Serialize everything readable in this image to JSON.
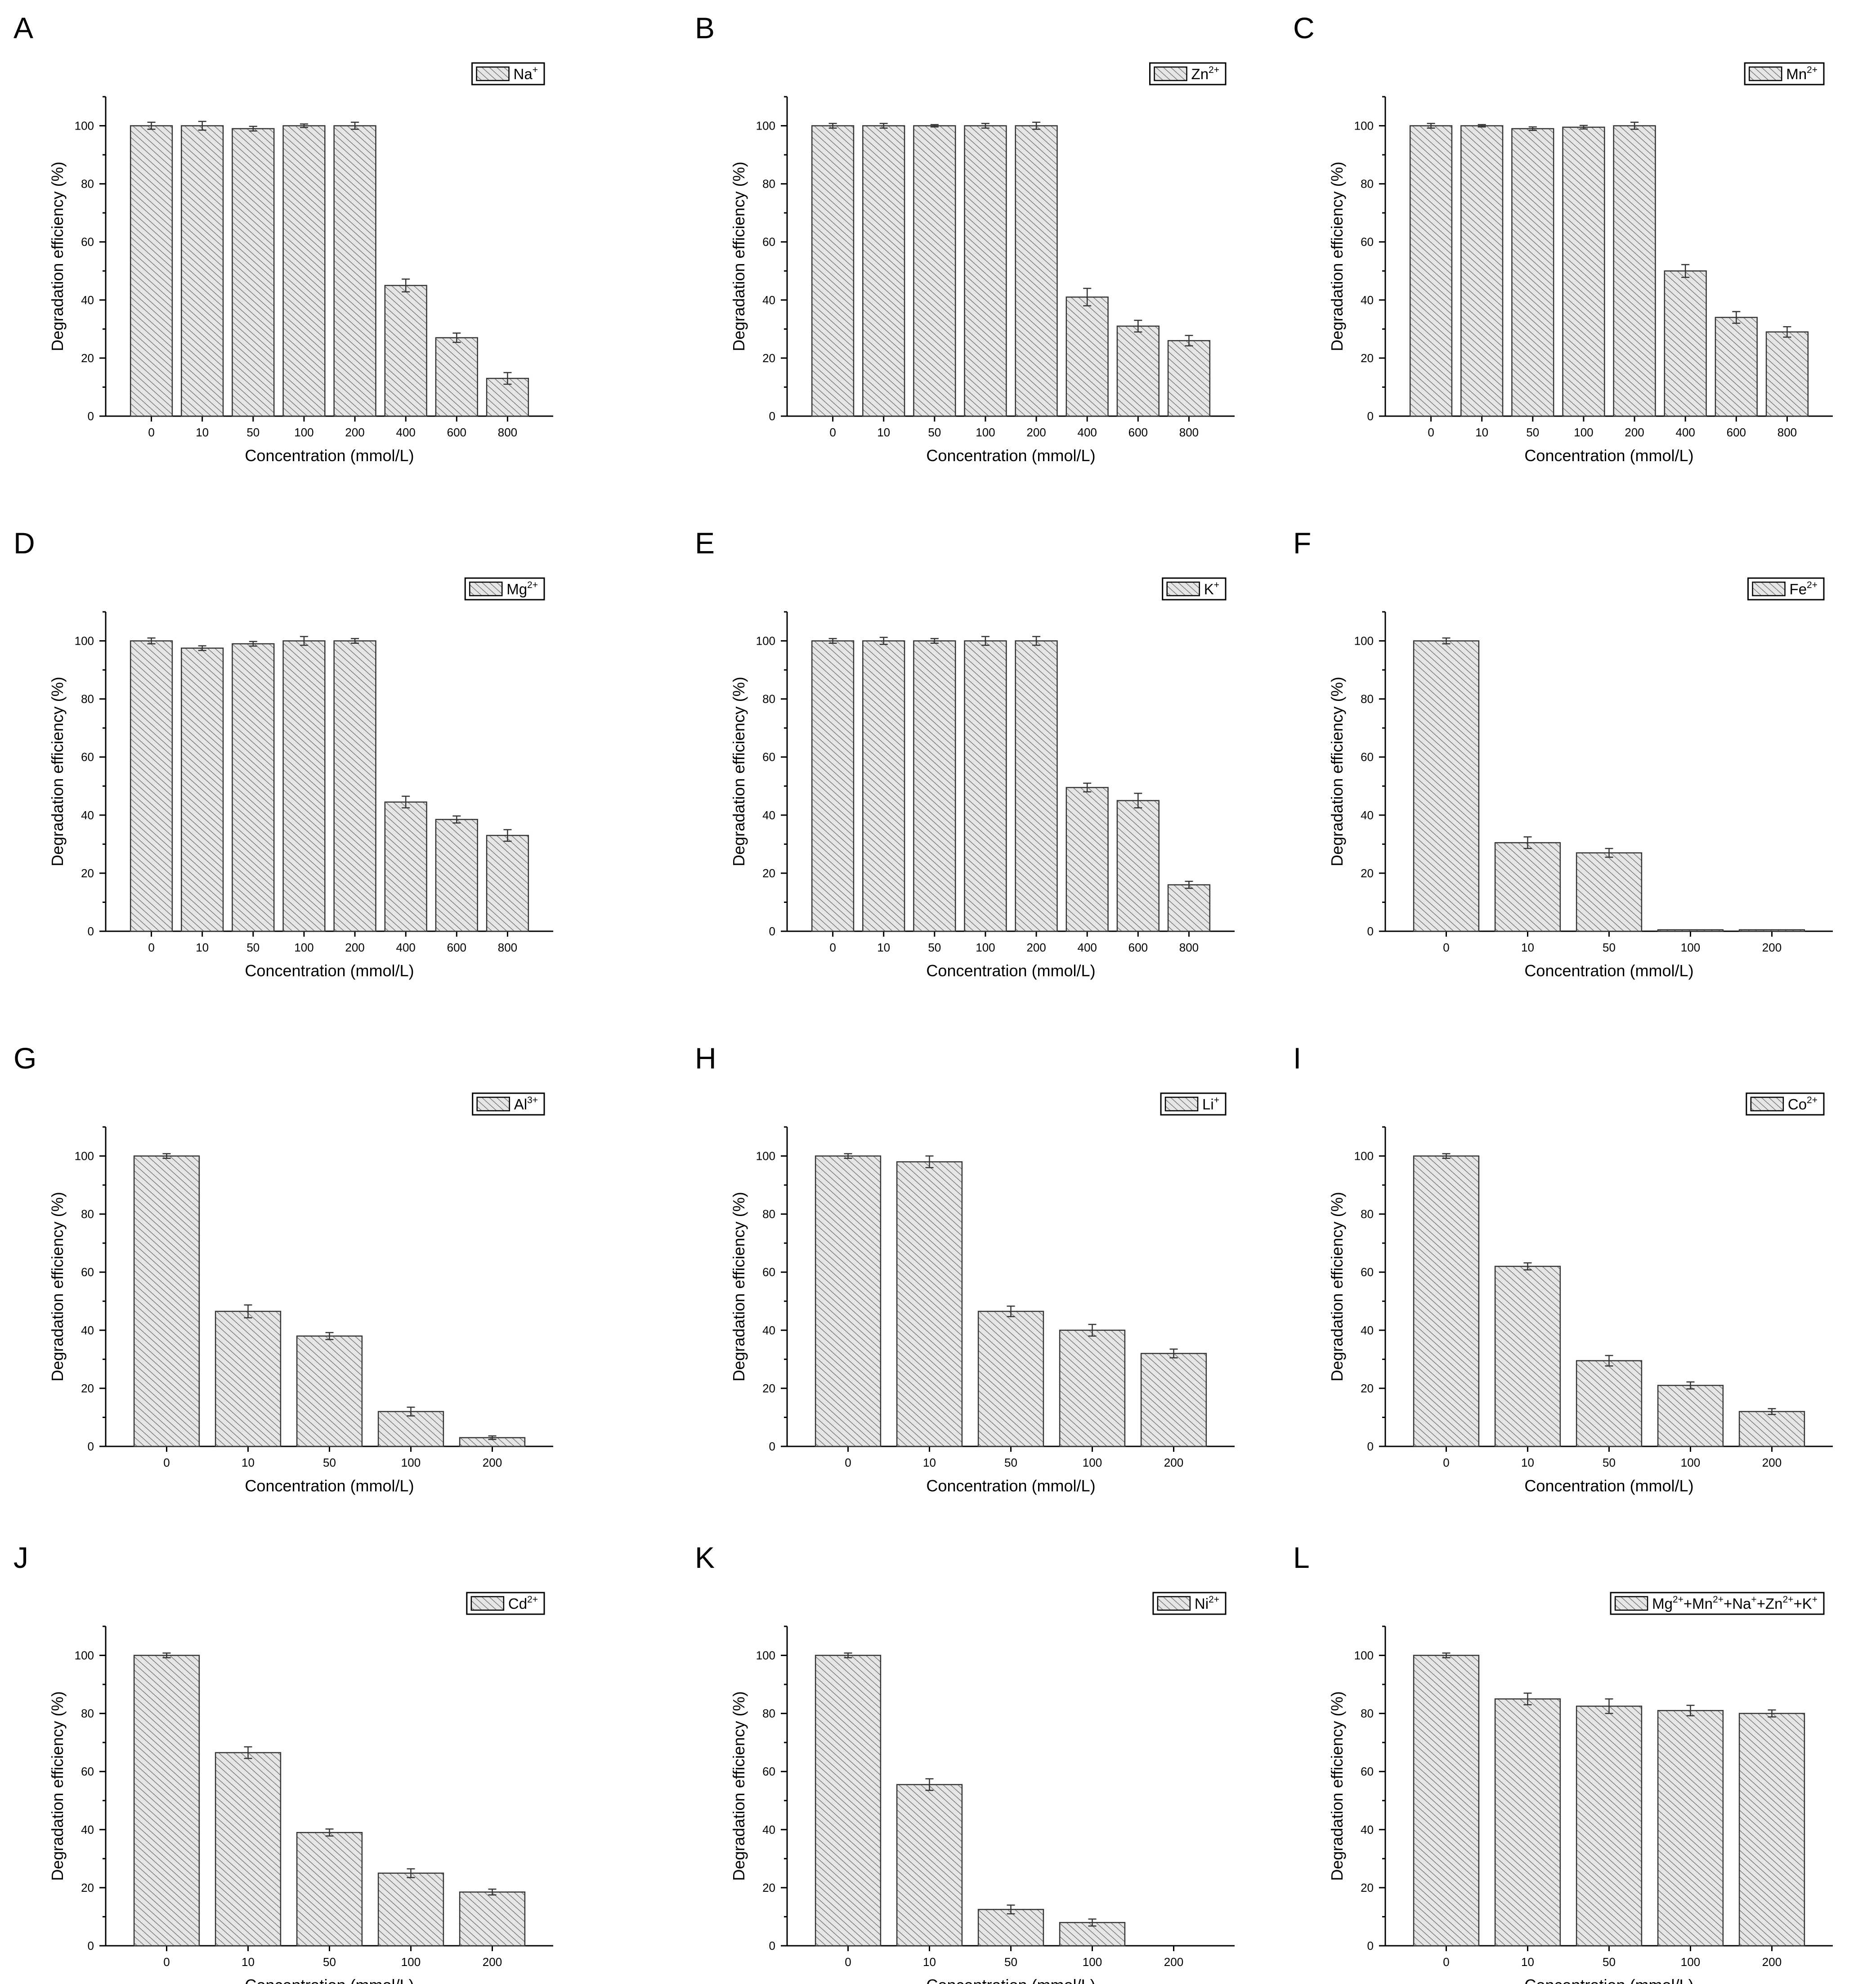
{
  "figure": {
    "colors": {
      "bar_fill": "#e6e6e6",
      "hatch": "#7a7a7a",
      "axis": "#000000",
      "background": "#ffffff"
    }
  },
  "chart_data": [
    {
      "panel": "A",
      "type": "bar",
      "legend": [
        {
          "base": "Na",
          "sup": "+"
        }
      ],
      "categories": [
        "0",
        "10",
        "50",
        "100",
        "200",
        "400",
        "600",
        "800"
      ],
      "values": [
        100,
        100,
        99,
        100,
        100,
        45,
        27,
        13
      ],
      "errors": [
        1.2,
        1.5,
        0.8,
        0.6,
        1.2,
        2.2,
        1.6,
        2.0
      ],
      "xlabel": "Concentration (mmol/L)",
      "ylabel": "Degradation efficiency (%)",
      "ylim": [
        0,
        110
      ],
      "yticks": [
        "0",
        "20",
        "40",
        "60",
        "80",
        "100"
      ]
    },
    {
      "panel": "B",
      "type": "bar",
      "legend": [
        {
          "base": "Zn",
          "sup": "2+"
        }
      ],
      "categories": [
        "0",
        "10",
        "50",
        "100",
        "200",
        "400",
        "600",
        "800"
      ],
      "values": [
        100,
        100,
        100,
        100,
        100,
        41,
        31,
        26
      ],
      "errors": [
        0.8,
        0.8,
        0.4,
        0.8,
        1.2,
        3.0,
        2.0,
        1.8
      ],
      "xlabel": "Concentration (mmol/L)",
      "ylabel": "Degradation efficiency (%)",
      "ylim": [
        0,
        110
      ],
      "yticks": [
        "0",
        "20",
        "40",
        "60",
        "80",
        "100"
      ]
    },
    {
      "panel": "C",
      "type": "bar",
      "legend": [
        {
          "base": "Mn",
          "sup": "2+"
        }
      ],
      "categories": [
        "0",
        "10",
        "50",
        "100",
        "200",
        "400",
        "600",
        "800"
      ],
      "values": [
        100,
        100,
        99,
        99.5,
        100,
        50,
        34,
        29
      ],
      "errors": [
        0.8,
        0.4,
        0.6,
        0.6,
        1.2,
        2.2,
        2.0,
        1.8
      ],
      "xlabel": "Concentration (mmol/L)",
      "ylabel": "Degradation efficiency (%)",
      "ylim": [
        0,
        110
      ],
      "yticks": [
        "0",
        "20",
        "40",
        "60",
        "80",
        "100"
      ]
    },
    {
      "panel": "D",
      "type": "bar",
      "legend": [
        {
          "base": "Mg",
          "sup": "2+"
        }
      ],
      "categories": [
        "0",
        "10",
        "50",
        "100",
        "200",
        "400",
        "600",
        "800"
      ],
      "values": [
        100,
        97.5,
        99,
        100,
        100,
        44.5,
        38.5,
        33
      ],
      "errors": [
        1.0,
        0.8,
        0.8,
        1.5,
        0.8,
        2.0,
        1.2,
        2.0
      ],
      "xlabel": "Concentration (mmol/L)",
      "ylabel": "Degradation efficiency (%)",
      "ylim": [
        0,
        110
      ],
      "yticks": [
        "0",
        "20",
        "40",
        "60",
        "80",
        "100"
      ]
    },
    {
      "panel": "E",
      "type": "bar",
      "legend": [
        {
          "base": "K",
          "sup": "+"
        }
      ],
      "categories": [
        "0",
        "10",
        "50",
        "100",
        "200",
        "400",
        "600",
        "800"
      ],
      "values": [
        100,
        100,
        100,
        100,
        100,
        49.5,
        45,
        16
      ],
      "errors": [
        0.8,
        1.2,
        0.8,
        1.5,
        1.5,
        1.5,
        2.5,
        1.2
      ],
      "xlabel": "Concentration (mmol/L)",
      "ylabel": "Degradation efficiency (%)",
      "ylim": [
        0,
        110
      ],
      "yticks": [
        "0",
        "20",
        "40",
        "60",
        "80",
        "100"
      ]
    },
    {
      "panel": "F",
      "type": "bar",
      "legend": [
        {
          "base": "Fe",
          "sup": "2+"
        }
      ],
      "categories": [
        "0",
        "10",
        "50",
        "100",
        "200"
      ],
      "values": [
        100,
        30.5,
        27,
        0.5,
        0.5
      ],
      "errors": [
        1.0,
        2.0,
        1.5,
        0,
        0
      ],
      "xlabel": "Concentration (mmol/L)",
      "ylabel": "Degradation efficiency (%)",
      "ylim": [
        0,
        110
      ],
      "yticks": [
        "0",
        "20",
        "40",
        "60",
        "80",
        "100"
      ]
    },
    {
      "panel": "G",
      "type": "bar",
      "legend": [
        {
          "base": "Al",
          "sup": "3+"
        }
      ],
      "categories": [
        "0",
        "10",
        "50",
        "100",
        "200"
      ],
      "values": [
        100,
        46.5,
        38,
        12,
        3
      ],
      "errors": [
        0.8,
        2.2,
        1.2,
        1.5,
        0.6
      ],
      "xlabel": "Concentration (mmol/L)",
      "ylabel": "Degradation efficiency (%)",
      "ylim": [
        0,
        110
      ],
      "yticks": [
        "0",
        "20",
        "40",
        "60",
        "80",
        "100"
      ]
    },
    {
      "panel": "H",
      "type": "bar",
      "legend": [
        {
          "base": "Li",
          "sup": "+"
        }
      ],
      "categories": [
        "0",
        "10",
        "50",
        "100",
        "200"
      ],
      "values": [
        100,
        98,
        46.5,
        40,
        32
      ],
      "errors": [
        0.8,
        2.0,
        1.8,
        2.0,
        1.5
      ],
      "xlabel": "Concentration (mmol/L)",
      "ylabel": "Degradation efficiency (%)",
      "ylim": [
        0,
        110
      ],
      "yticks": [
        "0",
        "20",
        "40",
        "60",
        "80",
        "100"
      ]
    },
    {
      "panel": "I",
      "type": "bar",
      "legend": [
        {
          "base": "Co",
          "sup": "2+"
        }
      ],
      "categories": [
        "0",
        "10",
        "50",
        "100",
        "200"
      ],
      "values": [
        100,
        62,
        29.5,
        21,
        12
      ],
      "errors": [
        0.8,
        1.2,
        1.8,
        1.2,
        1.0
      ],
      "xlabel": "Concentration (mmol/L)",
      "ylabel": "Degradation efficiency (%)",
      "ylim": [
        0,
        110
      ],
      "yticks": [
        "0",
        "20",
        "40",
        "60",
        "80",
        "100"
      ]
    },
    {
      "panel": "J",
      "type": "bar",
      "legend": [
        {
          "base": "Cd",
          "sup": "2+"
        }
      ],
      "categories": [
        "0",
        "10",
        "50",
        "100",
        "200"
      ],
      "values": [
        100,
        66.5,
        39,
        25,
        18.5
      ],
      "errors": [
        0.8,
        2.0,
        1.2,
        1.5,
        1.0
      ],
      "xlabel": "Concentration (mmol/L)",
      "ylabel": "Degradation efficiency (%)",
      "ylim": [
        0,
        110
      ],
      "yticks": [
        "0",
        "20",
        "40",
        "60",
        "80",
        "100"
      ]
    },
    {
      "panel": "K",
      "type": "bar",
      "legend": [
        {
          "base": "Ni",
          "sup": "2+"
        }
      ],
      "categories": [
        "0",
        "10",
        "50",
        "100",
        "200"
      ],
      "values": [
        100,
        55.5,
        12.5,
        8,
        0
      ],
      "errors": [
        0.8,
        2.0,
        1.5,
        1.2,
        0
      ],
      "xlabel": "Concentration (mmol/L)",
      "ylabel": "Degradation efficiency (%)",
      "ylim": [
        0,
        110
      ],
      "yticks": [
        "0",
        "20",
        "40",
        "60",
        "80",
        "100"
      ]
    },
    {
      "panel": "L",
      "type": "bar",
      "legend": [
        {
          "base": "Mg",
          "sup": "2+"
        },
        {
          "base": "+Mn",
          "sup": "2+"
        },
        {
          "base": "+Na",
          "sup": "+"
        },
        {
          "base": "+Zn",
          "sup": "2+"
        },
        {
          "base": "+K",
          "sup": "+"
        }
      ],
      "categories": [
        "0",
        "10",
        "50",
        "100",
        "200"
      ],
      "values": [
        100,
        85,
        82.5,
        81,
        80
      ],
      "errors": [
        0.8,
        2.0,
        2.5,
        1.8,
        1.2
      ],
      "xlabel": "Concentration (mmol/L)",
      "ylabel": "Degradation efficiency (%)",
      "ylim": [
        0,
        110
      ],
      "yticks": [
        "0",
        "20",
        "40",
        "60",
        "80",
        "100"
      ]
    }
  ]
}
